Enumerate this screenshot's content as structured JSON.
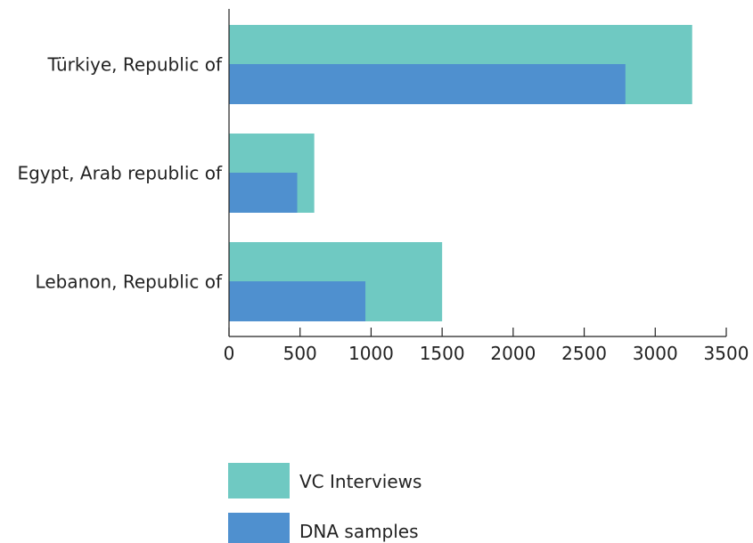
{
  "chart_data": {
    "type": "bar",
    "orientation": "horizontal",
    "overlapping_bars": true,
    "categories": [
      "Türkiye, Republic of",
      "Egypt, Arab republic of",
      "Lebanon, Republic of"
    ],
    "series": [
      {
        "name": "VC Interviews",
        "values": [
          3260,
          600,
          1500
        ],
        "color": "#6fc9c2"
      },
      {
        "name": "DNA samples",
        "values": [
          2790,
          480,
          960
        ],
        "color": "#4f90cf"
      }
    ],
    "xlim": [
      0,
      3500
    ],
    "x_ticks": [
      0,
      500,
      1000,
      1500,
      2000,
      2500,
      3000,
      3500
    ],
    "grid": false,
    "legend_position": "bottom"
  }
}
